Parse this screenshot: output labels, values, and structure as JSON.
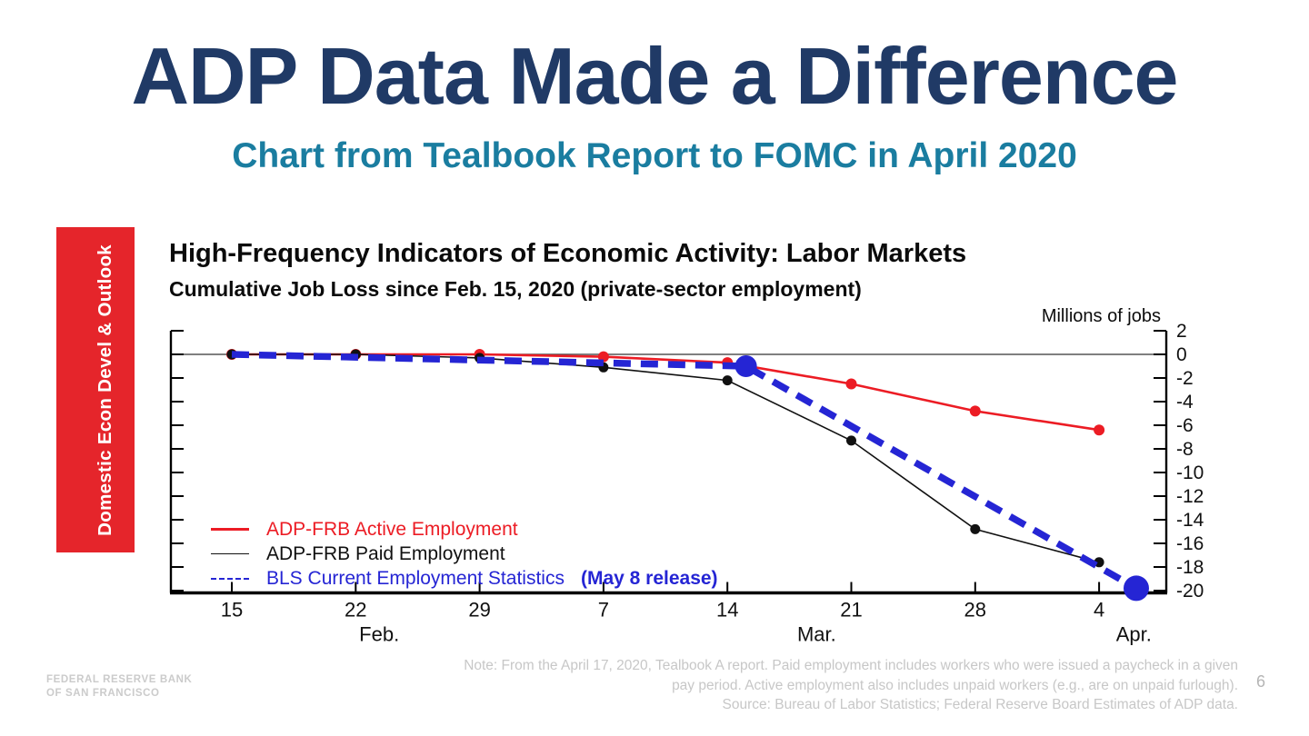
{
  "slide": {
    "title": "ADP Data Made a Difference",
    "subtitle": "Chart from Tealbook Report to FOMC in April 2020",
    "title_color": "#203a66",
    "subtitle_color": "#1a7da0",
    "page_number": "6"
  },
  "sidebar": {
    "label": "Domestic Econ Devel & Outlook",
    "color": "#e5252b"
  },
  "branding": {
    "line1": "FEDERAL RESERVE BANK",
    "line2": "OF SAN FRANCISCO"
  },
  "chart": {
    "title": "High-Frequency Indicators of Economic Activity: Labor Markets",
    "subtitle": "Cumulative Job Loss since Feb. 15, 2020 (private-sector employment)",
    "unit_label": "Millions of jobs"
  },
  "legend": {
    "items": [
      {
        "label": "ADP-FRB Active Employment",
        "color": "#ec1c24",
        "style": "solid",
        "thickness": 3.5
      },
      {
        "label": "ADP-FRB Paid Employment",
        "color": "#111111",
        "style": "solid",
        "thickness": 1.6
      },
      {
        "label": "BLS Current Employment Statistics",
        "suffix": "(May 8 release)",
        "color": "#2525d4",
        "style": "dashed",
        "thickness": 2.5
      }
    ]
  },
  "footnote": {
    "line1": "Note: From the April 17, 2020, Tealbook A report. Paid employment includes workers who were issued a paycheck in a given",
    "line2": "pay period. Active employment also includes unpaid workers (e.g., are on unpaid furlough).",
    "line3": "Source: Bureau of Labor Statistics; Federal Reserve Board Estimates of ADP data."
  },
  "chart_data": {
    "type": "line",
    "title": "High-Frequency Indicators of Economic Activity: Labor Markets",
    "subtitle": "Cumulative Job Loss since Feb. 15, 2020 (private-sector employment)",
    "ylabel": "Millions of jobs",
    "xlabel": "",
    "ylim": [
      2,
      -20.2
    ],
    "grid": false,
    "legend_position": "inside bottom-left",
    "y_ticks": [
      2,
      0,
      -2,
      -4,
      -6,
      -8,
      -10,
      -12,
      -14,
      -16,
      -18,
      -20
    ],
    "x_axis": {
      "tick_labels": [
        "15",
        "22",
        "29",
        "7",
        "14",
        "21",
        "28",
        "4"
      ],
      "month_labels": [
        {
          "label": "Feb.",
          "index": 1.19
        },
        {
          "label": "Mar.",
          "index": 4.72
        },
        {
          "label": "Apr.",
          "index": 7.28
        }
      ]
    },
    "series": [
      {
        "name": "ADP-FRB Active Employment",
        "color": "#ec1c24",
        "style": "solid",
        "width": 2.6,
        "marker_r": 6,
        "x": [
          0,
          1,
          2,
          3,
          4,
          5,
          6,
          7
        ],
        "values": [
          0,
          0,
          0,
          -0.2,
          -0.7,
          -2.5,
          -4.8,
          -6.4
        ]
      },
      {
        "name": "ADP-FRB Paid Employment",
        "color": "#111111",
        "style": "solid",
        "width": 1.6,
        "marker_r": 5.5,
        "x": [
          0,
          1,
          2,
          3,
          4,
          5,
          6,
          7
        ],
        "values": [
          0,
          0,
          -0.3,
          -1.1,
          -2.2,
          -7.3,
          -14.8,
          -17.6
        ]
      },
      {
        "name": "BLS Current Employment Statistics (May 8 release)",
        "color": "#2525d4",
        "style": "dashed",
        "dash": "19 11",
        "width": 7.5,
        "x": [
          0,
          4.15,
          7.3
        ],
        "values": [
          0,
          -1.0,
          -19.8
        ],
        "big_markers": [
          {
            "x": 4.15,
            "v": -1.0,
            "r": 12
          },
          {
            "x": 7.3,
            "v": -19.8,
            "r": 14
          }
        ]
      }
    ]
  }
}
